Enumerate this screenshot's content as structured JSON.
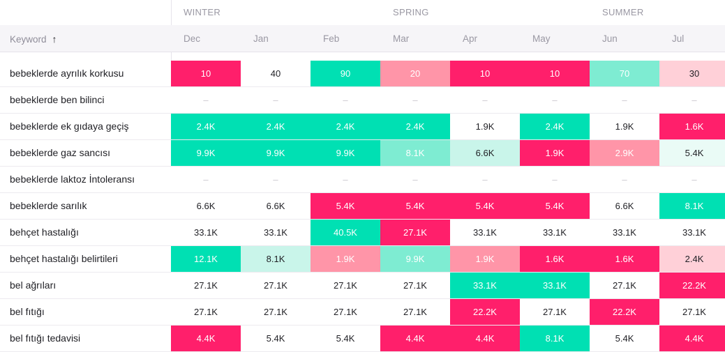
{
  "seasons": [
    "WINTER",
    "SPRING",
    "SUMMER"
  ],
  "header": {
    "keyword_label": "Keyword",
    "sort_icon": "arrow-up-icon"
  },
  "months": [
    "Dec",
    "Jan",
    "Feb",
    "Mar",
    "Apr",
    "May",
    "Jun",
    "Jul"
  ],
  "colors": {
    "high_green": "#00e0b3",
    "mid_green": "#7eecd2",
    "light_green": "#c9f5ea",
    "faint_green": "#eafbf6",
    "high_pink": "#ff1f6b",
    "mid_pink": "#ff95a8",
    "light_pink": "#ffd0d8",
    "none": "#ffffff"
  },
  "rows": [
    {
      "keyword": "bebeklerde ayrılık korkusu",
      "cells": [
        {
          "v": "10",
          "c": "high_pink"
        },
        {
          "v": "40",
          "c": "none"
        },
        {
          "v": "90",
          "c": "high_green"
        },
        {
          "v": "20",
          "c": "mid_pink"
        },
        {
          "v": "10",
          "c": "high_pink"
        },
        {
          "v": "10",
          "c": "high_pink"
        },
        {
          "v": "70",
          "c": "mid_green"
        },
        {
          "v": "30",
          "c": "light_pink"
        }
      ]
    },
    {
      "keyword": "bebeklerde ben bilinci",
      "cells": [
        {
          "v": "–",
          "c": "none"
        },
        {
          "v": "–",
          "c": "none"
        },
        {
          "v": "–",
          "c": "none"
        },
        {
          "v": "–",
          "c": "none"
        },
        {
          "v": "–",
          "c": "none"
        },
        {
          "v": "–",
          "c": "none"
        },
        {
          "v": "–",
          "c": "none"
        },
        {
          "v": "–",
          "c": "none"
        }
      ]
    },
    {
      "keyword": "bebeklerde ek gıdaya geçiş",
      "cells": [
        {
          "v": "2.4K",
          "c": "high_green"
        },
        {
          "v": "2.4K",
          "c": "high_green"
        },
        {
          "v": "2.4K",
          "c": "high_green"
        },
        {
          "v": "2.4K",
          "c": "high_green"
        },
        {
          "v": "1.9K",
          "c": "none"
        },
        {
          "v": "2.4K",
          "c": "high_green"
        },
        {
          "v": "1.9K",
          "c": "none"
        },
        {
          "v": "1.6K",
          "c": "high_pink"
        }
      ]
    },
    {
      "keyword": "bebeklerde gaz sancısı",
      "cells": [
        {
          "v": "9.9K",
          "c": "high_green"
        },
        {
          "v": "9.9K",
          "c": "high_green"
        },
        {
          "v": "9.9K",
          "c": "high_green"
        },
        {
          "v": "8.1K",
          "c": "mid_green"
        },
        {
          "v": "6.6K",
          "c": "light_green"
        },
        {
          "v": "1.9K",
          "c": "high_pink"
        },
        {
          "v": "2.9K",
          "c": "mid_pink"
        },
        {
          "v": "5.4K",
          "c": "faint_green"
        }
      ]
    },
    {
      "keyword": "bebeklerde laktoz İntoleransı",
      "cells": [
        {
          "v": "–",
          "c": "none"
        },
        {
          "v": "–",
          "c": "none"
        },
        {
          "v": "–",
          "c": "none"
        },
        {
          "v": "–",
          "c": "none"
        },
        {
          "v": "–",
          "c": "none"
        },
        {
          "v": "–",
          "c": "none"
        },
        {
          "v": "–",
          "c": "none"
        },
        {
          "v": "–",
          "c": "none"
        }
      ]
    },
    {
      "keyword": "bebeklerde sarılık",
      "cells": [
        {
          "v": "6.6K",
          "c": "none"
        },
        {
          "v": "6.6K",
          "c": "none"
        },
        {
          "v": "5.4K",
          "c": "high_pink"
        },
        {
          "v": "5.4K",
          "c": "high_pink"
        },
        {
          "v": "5.4K",
          "c": "high_pink"
        },
        {
          "v": "5.4K",
          "c": "high_pink"
        },
        {
          "v": "6.6K",
          "c": "none"
        },
        {
          "v": "8.1K",
          "c": "high_green"
        }
      ]
    },
    {
      "keyword": "behçet hastalığı",
      "cells": [
        {
          "v": "33.1K",
          "c": "none"
        },
        {
          "v": "33.1K",
          "c": "none"
        },
        {
          "v": "40.5K",
          "c": "high_green"
        },
        {
          "v": "27.1K",
          "c": "high_pink"
        },
        {
          "v": "33.1K",
          "c": "none"
        },
        {
          "v": "33.1K",
          "c": "none"
        },
        {
          "v": "33.1K",
          "c": "none"
        },
        {
          "v": "33.1K",
          "c": "none"
        }
      ]
    },
    {
      "keyword": "behçet hastalığı belirtileri",
      "cells": [
        {
          "v": "12.1K",
          "c": "high_green"
        },
        {
          "v": "8.1K",
          "c": "light_green"
        },
        {
          "v": "1.9K",
          "c": "mid_pink"
        },
        {
          "v": "9.9K",
          "c": "mid_green"
        },
        {
          "v": "1.9K",
          "c": "mid_pink"
        },
        {
          "v": "1.6K",
          "c": "high_pink"
        },
        {
          "v": "1.6K",
          "c": "high_pink"
        },
        {
          "v": "2.4K",
          "c": "light_pink"
        }
      ]
    },
    {
      "keyword": "bel ağrıları",
      "cells": [
        {
          "v": "27.1K",
          "c": "none"
        },
        {
          "v": "27.1K",
          "c": "none"
        },
        {
          "v": "27.1K",
          "c": "none"
        },
        {
          "v": "27.1K",
          "c": "none"
        },
        {
          "v": "33.1K",
          "c": "high_green"
        },
        {
          "v": "33.1K",
          "c": "high_green"
        },
        {
          "v": "27.1K",
          "c": "none"
        },
        {
          "v": "22.2K",
          "c": "high_pink"
        }
      ]
    },
    {
      "keyword": "bel fıtığı",
      "cells": [
        {
          "v": "27.1K",
          "c": "none"
        },
        {
          "v": "27.1K",
          "c": "none"
        },
        {
          "v": "27.1K",
          "c": "none"
        },
        {
          "v": "27.1K",
          "c": "none"
        },
        {
          "v": "22.2K",
          "c": "high_pink"
        },
        {
          "v": "27.1K",
          "c": "none"
        },
        {
          "v": "22.2K",
          "c": "high_pink"
        },
        {
          "v": "27.1K",
          "c": "none"
        }
      ]
    },
    {
      "keyword": "bel fıtığı tedavisi",
      "cells": [
        {
          "v": "4.4K",
          "c": "high_pink"
        },
        {
          "v": "5.4K",
          "c": "none"
        },
        {
          "v": "5.4K",
          "c": "none"
        },
        {
          "v": "4.4K",
          "c": "high_pink"
        },
        {
          "v": "4.4K",
          "c": "high_pink"
        },
        {
          "v": "8.1K",
          "c": "high_green"
        },
        {
          "v": "5.4K",
          "c": "none"
        },
        {
          "v": "4.4K",
          "c": "high_pink"
        }
      ]
    }
  ]
}
